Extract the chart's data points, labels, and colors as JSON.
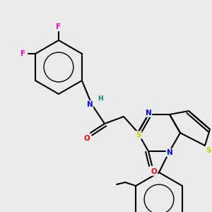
{
  "background_color": "#ebebeb",
  "atom_colors": {
    "F": "#ff00cc",
    "N": "#0000ff",
    "O": "#ff0000",
    "S": "#cccc00",
    "H": "#008080",
    "C": "#000000"
  },
  "bond_color": "#000000",
  "figsize": [
    3.0,
    3.0
  ],
  "dpi": 100
}
